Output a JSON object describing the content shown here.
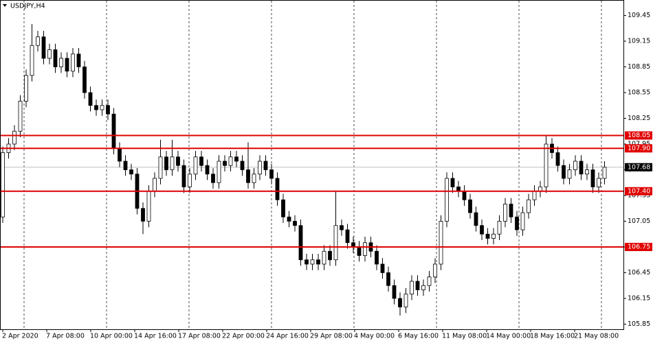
{
  "chart_data": {
    "type": "candlestick",
    "title": "USDJPY,H4",
    "ylim": [
      105.79,
      109.63
    ],
    "yticks": [
      105.85,
      106.15,
      106.45,
      106.75,
      107.05,
      107.35,
      107.65,
      107.95,
      108.25,
      108.55,
      108.85,
      109.15,
      109.45
    ],
    "x_labels": [
      "2 Apr 2020",
      "7 Apr 08:00",
      "10 Apr 00:00",
      "14 Apr 16:00",
      "17 Apr 08:00",
      "22 Apr 00:00",
      "24 Apr 16:00",
      "29 Apr 08:00",
      "4 May 00:00",
      "6 May 16:00",
      "11 May 08:00",
      "14 May 00:00",
      "18 May 16:00",
      "21 May 08:00"
    ],
    "levels": [
      108.05,
      {
        "value": 107.9,
        "label": "107.90"
      },
      {
        "value": 107.4,
        "label": "107.40"
      },
      106.75
    ],
    "level_color": "#e00000",
    "current_price": 107.68,
    "open": [
      107.1,
      107.85,
      107.95,
      108.1,
      108.45,
      108.75,
      109.1,
      109.2,
      108.95,
      109.05,
      108.85,
      108.95,
      108.8,
      109.0,
      108.85,
      108.55,
      108.4,
      108.35,
      108.4,
      108.3,
      107.9,
      107.75,
      107.65,
      107.6,
      107.2,
      107.05,
      107.4,
      107.55,
      107.8,
      107.65,
      107.8,
      107.7,
      107.45,
      107.6,
      107.8,
      107.7,
      107.6,
      107.5,
      107.75,
      107.7,
      107.8,
      107.75,
      107.65,
      107.5,
      107.6,
      107.75,
      107.65,
      107.55,
      107.3,
      107.1,
      107.05,
      107.0,
      106.6,
      106.55,
      106.6,
      106.55,
      106.7,
      106.6,
      107.0,
      106.95,
      106.8,
      106.75,
      106.65,
      106.8,
      106.7,
      106.55,
      106.45,
      106.3,
      106.15,
      106.05,
      106.2,
      106.35,
      106.25,
      106.3,
      106.4,
      106.55,
      107.05,
      107.55,
      107.45,
      107.4,
      107.3,
      107.15,
      107.0,
      106.9,
      106.85,
      106.9,
      107.05,
      107.25,
      107.1,
      106.95,
      107.15,
      107.3,
      107.4,
      107.45,
      107.95,
      107.85,
      107.7,
      107.55,
      107.65,
      107.75,
      107.6,
      107.65,
      107.45,
      107.55
    ],
    "high": [
      107.92,
      108.02,
      108.17,
      108.52,
      108.82,
      109.35,
      109.27,
      109.27,
      109.12,
      109.12,
      109.02,
      109.02,
      109.07,
      109.07,
      108.92,
      108.62,
      108.47,
      108.47,
      108.47,
      108.37,
      107.97,
      107.82,
      107.72,
      107.67,
      107.27,
      107.47,
      107.62,
      108.0,
      107.87,
      108.0,
      107.87,
      107.77,
      107.67,
      107.87,
      107.87,
      107.77,
      107.67,
      107.82,
      107.82,
      107.87,
      107.87,
      107.82,
      107.97,
      107.67,
      107.82,
      107.82,
      107.72,
      107.62,
      107.37,
      107.17,
      107.12,
      107.07,
      106.67,
      106.67,
      106.67,
      106.77,
      106.77,
      107.4,
      107.07,
      107.02,
      106.87,
      106.82,
      106.87,
      106.87,
      106.77,
      106.62,
      106.52,
      106.37,
      106.22,
      106.27,
      106.42,
      106.42,
      106.37,
      106.47,
      106.62,
      107.12,
      107.62,
      107.62,
      107.52,
      107.47,
      107.37,
      107.22,
      107.07,
      106.97,
      106.97,
      107.12,
      107.32,
      107.32,
      107.17,
      107.22,
      107.37,
      107.47,
      107.52,
      108.05,
      108.02,
      107.92,
      107.77,
      107.72,
      107.82,
      107.82,
      107.72,
      107.72,
      107.62,
      107.75
    ],
    "low": [
      107.03,
      107.78,
      107.88,
      108.03,
      108.38,
      108.68,
      109.03,
      108.88,
      108.88,
      108.78,
      108.78,
      108.73,
      108.73,
      108.78,
      108.48,
      108.33,
      108.28,
      108.28,
      108.23,
      107.83,
      107.68,
      107.58,
      107.53,
      107.13,
      106.9,
      106.98,
      107.33,
      107.48,
      107.58,
      107.58,
      107.63,
      107.38,
      107.38,
      107.53,
      107.63,
      107.53,
      107.43,
      107.43,
      107.63,
      107.63,
      107.68,
      107.58,
      107.43,
      107.43,
      107.53,
      107.58,
      107.48,
      107.23,
      107.03,
      106.98,
      106.93,
      106.53,
      106.48,
      106.48,
      106.48,
      106.48,
      106.53,
      106.53,
      106.88,
      106.73,
      106.68,
      106.58,
      106.58,
      106.63,
      106.48,
      106.38,
      106.23,
      106.08,
      105.95,
      105.98,
      106.13,
      106.18,
      106.18,
      106.23,
      106.33,
      106.48,
      106.98,
      107.38,
      107.33,
      107.23,
      107.08,
      106.93,
      106.83,
      106.78,
      106.78,
      106.83,
      106.98,
      107.03,
      106.88,
      106.88,
      107.08,
      107.23,
      107.33,
      107.38,
      107.78,
      107.63,
      107.48,
      107.48,
      107.58,
      107.53,
      107.53,
      107.38,
      107.38,
      107.48
    ],
    "close": [
      107.85,
      107.95,
      108.1,
      108.45,
      108.75,
      109.1,
      109.2,
      108.95,
      109.05,
      108.85,
      108.95,
      108.8,
      109.0,
      108.85,
      108.55,
      108.4,
      108.35,
      108.4,
      108.3,
      107.9,
      107.75,
      107.65,
      107.6,
      107.2,
      107.05,
      107.4,
      107.55,
      107.8,
      107.65,
      107.8,
      107.7,
      107.45,
      107.6,
      107.8,
      107.7,
      107.6,
      107.5,
      107.75,
      107.7,
      107.8,
      107.75,
      107.65,
      107.5,
      107.6,
      107.75,
      107.65,
      107.55,
      107.3,
      107.1,
      107.05,
      107.0,
      106.6,
      106.55,
      106.6,
      106.55,
      106.7,
      106.6,
      107.0,
      106.95,
      106.8,
      106.75,
      106.65,
      106.8,
      106.7,
      106.55,
      106.45,
      106.3,
      106.15,
      106.05,
      106.2,
      106.35,
      106.25,
      106.3,
      106.4,
      106.55,
      107.05,
      107.55,
      107.45,
      107.4,
      107.3,
      107.15,
      107.0,
      106.9,
      106.85,
      106.9,
      107.05,
      107.25,
      107.1,
      106.95,
      107.15,
      107.3,
      107.4,
      107.45,
      107.95,
      107.85,
      107.7,
      107.55,
      107.65,
      107.75,
      107.6,
      107.65,
      107.45,
      107.55,
      107.68
    ]
  }
}
